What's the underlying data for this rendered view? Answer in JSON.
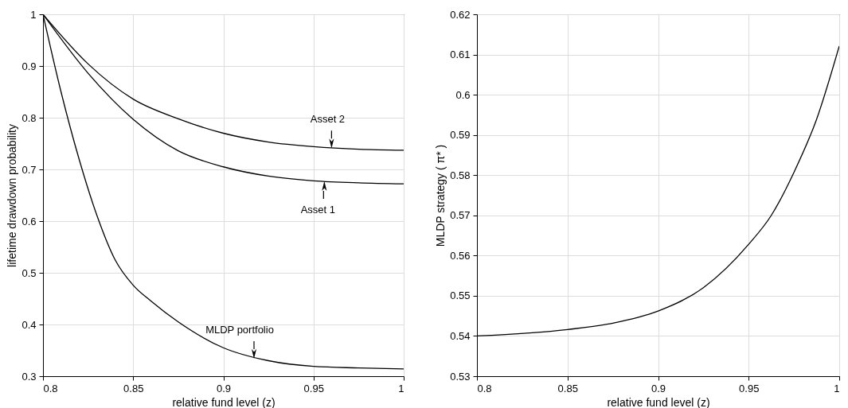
{
  "chart_data": [
    {
      "type": "line",
      "xlabel": "relative fund level (z)",
      "ylabel": "lifetime drawdown probability",
      "xlim": [
        0.8,
        1
      ],
      "xticks": [
        0.8,
        0.85,
        0.9,
        0.95,
        1
      ],
      "ylim": [
        0.3,
        1
      ],
      "yticks": [
        0.3,
        0.4,
        0.5,
        0.6,
        0.7,
        0.8,
        0.9,
        1
      ],
      "grid": true,
      "series": [
        {
          "color": "#000000",
          "x": [
            0.8,
            0.825,
            0.85,
            0.875,
            0.9,
            0.925,
            0.95,
            0.975,
            1
          ],
          "values": [
            1,
            0.904,
            0.836,
            0.798,
            0.77,
            0.753,
            0.744,
            0.739,
            0.737
          ]
        },
        {
          "color": "#000000",
          "x": [
            0.8,
            0.825,
            0.85,
            0.875,
            0.9,
            0.925,
            0.95,
            0.975,
            1
          ],
          "values": [
            1,
            0.886,
            0.797,
            0.736,
            0.705,
            0.687,
            0.678,
            0.674,
            0.672
          ]
        },
        {
          "color": "#000000",
          "x": [
            0.8,
            0.81,
            0.82,
            0.83,
            0.84,
            0.85,
            0.86,
            0.875,
            0.9,
            0.925,
            0.95,
            0.975,
            1
          ],
          "values": [
            1,
            0.85,
            0.72,
            0.61,
            0.525,
            0.476,
            0.445,
            0.405,
            0.355,
            0.33,
            0.319,
            0.316,
            0.314
          ]
        }
      ],
      "annotations": [
        {
          "text": "Asset 2",
          "x": 0.96,
          "y": 0.741
        },
        {
          "text": "Asset 1",
          "x": 0.956,
          "y": 0.677
        },
        {
          "text": "MLDP portfolio",
          "x": 0.917,
          "y": 0.334
        }
      ]
    },
    {
      "type": "line",
      "xlabel": "relative fund level (z)",
      "ylabel": "MLDP strategy ( π* )",
      "xlim": [
        0.8,
        1
      ],
      "xticks": [
        0.8,
        0.85,
        0.9,
        0.95,
        1
      ],
      "ylim": [
        0.53,
        0.62
      ],
      "yticks": [
        0.53,
        0.54,
        0.55,
        0.56,
        0.57,
        0.58,
        0.59,
        0.6,
        0.61,
        0.62
      ],
      "grid": true,
      "series": [
        {
          "color": "#000000",
          "x": [
            0.8,
            0.85,
            0.875,
            0.9,
            0.925,
            0.95,
            0.9625,
            0.975,
            0.9875,
            1
          ],
          "values": [
            0.54,
            0.5416,
            0.5432,
            0.5462,
            0.552,
            0.5628,
            0.57,
            0.5807,
            0.5939,
            0.6121
          ]
        }
      ]
    }
  ]
}
